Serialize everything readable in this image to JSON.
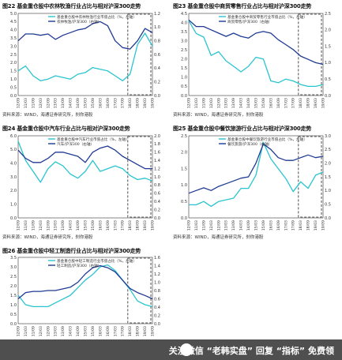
{
  "colors": {
    "teal": "#29c4cf",
    "navy": "#1f3a93",
    "frame": "#333333"
  },
  "x_ticks": [
    "12/09",
    "11/03",
    "11/09",
    "12/03",
    "12/09",
    "13/03",
    "13/09",
    "14/03",
    "14/09",
    "15/03",
    "15/09",
    "16/03",
    "16/09",
    "17/03",
    "17/09",
    "18/03",
    "18/09",
    "19/03",
    "19/09"
  ],
  "source": "资料来源：WIND，海通证券研究所，刹你港股",
  "watermark": {
    "text": "关注微信 “老韩实盘” 回复 “指标” 免费领"
  },
  "chart_data": [
    {
      "type": "line",
      "title": "图22 基金重仓股中农林牧渔行业占比与相对沪深300走势",
      "ylim_left": [
        0.0,
        5.0
      ],
      "yticks_left": [
        "0.0",
        "0.5",
        "1.0",
        "1.5",
        "2.0",
        "2.5",
        "3.0",
        "3.5",
        "4.0",
        "4.5",
        "5.0"
      ],
      "ylim_right": [
        0.0,
        1.2
      ],
      "yticks_right": [
        "0.0",
        "0.2",
        "0.4",
        "0.6",
        "0.8",
        "1.0",
        "1.2"
      ],
      "legend": [
        "基金重仓股中农林牧渔行业市值占比（%，左轴）",
        "农林牧渔/沪深300（右轴）"
      ],
      "series": [
        {
          "name": "基金重仓股中农林牧渔行业市值占比（%，左轴）",
          "axis": "left",
          "values": [
            1.5,
            1.8,
            1.2,
            0.9,
            1.0,
            1.2,
            1.1,
            1.0,
            1.3,
            1.4,
            1.7,
            1.6,
            1.5,
            1.2,
            0.9,
            1.3,
            3.1,
            3.8,
            3.0
          ]
        },
        {
          "name": "农林牧渔/沪深300（右轴）",
          "axis": "right",
          "values": [
            0.8,
            0.9,
            0.9,
            0.88,
            0.9,
            0.82,
            0.88,
            0.92,
            0.96,
            0.98,
            1.05,
            1.08,
            1.02,
            0.8,
            0.7,
            0.68,
            0.8,
            0.98,
            0.92
          ]
        }
      ]
    },
    {
      "type": "line",
      "title": "图23 基金重仓股中商贸零售行业占比与相对沪深300走势",
      "ylim_left": [
        0.0,
        4.5
      ],
      "yticks_left": [
        "0.0",
        "0.5",
        "1.0",
        "1.5",
        "2.0",
        "2.5",
        "3.0",
        "3.5",
        "4.0",
        "4.5"
      ],
      "ylim_right": [
        0.0,
        2.5
      ],
      "yticks_right": [
        "0.0",
        "0.5",
        "1.0",
        "1.5",
        "2.0",
        "2.5"
      ],
      "legend": [
        "基金重仓股中商贸零售行业市值占比（%，左轴）",
        "商贸零售/沪深300（右轴）"
      ],
      "series": [
        {
          "name": "基金重仓股中商贸零售行业市值占比（%，左轴）",
          "axis": "left",
          "values": [
            4.1,
            3.4,
            3.2,
            2.2,
            2.4,
            1.9,
            1.6,
            1.3,
            1.6,
            2.1,
            2.0,
            0.8,
            0.7,
            0.9,
            0.8,
            0.6,
            0.5,
            0.5,
            0.6
          ]
        },
        {
          "name": "商贸零售/沪深300（右轴）",
          "axis": "right",
          "values": [
            2.3,
            2.1,
            2.1,
            2.0,
            1.9,
            1.8,
            1.9,
            1.8,
            1.75,
            1.9,
            1.95,
            1.9,
            1.7,
            1.55,
            1.4,
            1.2,
            1.1,
            1.0,
            0.95
          ]
        }
      ]
    },
    {
      "type": "line",
      "title": "图24 基金重仓股中汽车行业占比与相对沪深300走势",
      "ylim_left": [
        0.0,
        6.0
      ],
      "yticks_left": [
        "0.0",
        "1.0",
        "2.0",
        "3.0",
        "4.0",
        "5.0",
        "6.0"
      ],
      "ylim_right": [
        0.0,
        2.0
      ],
      "yticks_right": [
        "0.0",
        "0.2",
        "0.4",
        "0.6",
        "0.8",
        "1.0",
        "1.2",
        "1.4",
        "1.6",
        "1.8",
        "2.0"
      ],
      "legend": [
        "基金重仓股中汽车行业市值占比（%，左轴）",
        "汽车/沪深300（右轴）"
      ],
      "series": [
        {
          "name": "基金重仓股中汽车行业市值占比（%，左轴）",
          "axis": "left",
          "values": [
            5.6,
            4.2,
            3.4,
            2.6,
            3.6,
            4.1,
            3.8,
            3.2,
            2.9,
            3.4,
            4.2,
            3.4,
            3.6,
            3.8,
            3.6,
            3.1,
            2.8,
            2.9,
            2.7
          ]
        },
        {
          "name": "汽车/沪深300（右轴）",
          "axis": "right",
          "values": [
            1.65,
            1.45,
            1.35,
            1.35,
            1.45,
            1.6,
            1.6,
            1.55,
            1.5,
            1.35,
            1.6,
            1.7,
            1.75,
            1.65,
            1.5,
            1.4,
            1.3,
            1.2,
            1.2
          ]
        }
      ]
    },
    {
      "type": "line",
      "title": "图25 基金重仓股中餐饮旅游行业占比与相对沪深300走势",
      "ylim_left": [
        0.0,
        2.5
      ],
      "yticks_left": [
        "0.0",
        "0.5",
        "1.0",
        "1.5",
        "2.0",
        "2.5"
      ],
      "ylim_right": [
        0.0,
        3.0
      ],
      "yticks_right": [
        "0.0",
        "0.5",
        "1.0",
        "1.5",
        "2.0",
        "2.5",
        "3.0"
      ],
      "legend": [
        "基金重仓股中餐饮旅游行业市值占比（%，左轴）",
        "餐饮旅游/沪深300（右轴）"
      ],
      "series": [
        {
          "name": "基金重仓股中餐饮旅游行业市值占比（%，左轴）",
          "axis": "left",
          "values": [
            0.4,
            0.4,
            0.5,
            0.35,
            0.5,
            0.55,
            0.6,
            0.9,
            0.9,
            1.3,
            2.3,
            1.8,
            1.5,
            1.2,
            0.8,
            1.1,
            0.9,
            1.3,
            1.4
          ]
        },
        {
          "name": "餐饮旅游/沪深300（右轴）",
          "axis": "right",
          "values": [
            0.9,
            1.0,
            1.1,
            1.0,
            1.15,
            1.25,
            1.35,
            1.45,
            1.5,
            2.0,
            2.7,
            2.5,
            2.2,
            2.1,
            2.1,
            2.2,
            2.3,
            2.2,
            2.25
          ]
        }
      ]
    },
    {
      "type": "line",
      "title": "图26 基金重仓股中轻工制造行业占比与相对沪深300走势",
      "ylim_left": [
        0.0,
        3.5
      ],
      "yticks_left": [
        "0.0",
        "0.5",
        "1.0",
        "1.5",
        "2.0",
        "2.5",
        "3.0",
        "3.5"
      ],
      "ylim_right": [
        0.0,
        1.6
      ],
      "yticks_right": [
        "0.0",
        "0.2",
        "0.4",
        "0.6",
        "0.8",
        "1.0",
        "1.2",
        "1.4",
        "1.6"
      ],
      "legend": [
        "基金重仓股中轻工制造行业市值占比（%，左轴）",
        "轻工制造/沪深300（右轴）"
      ],
      "series": [
        {
          "name": "基金重仓股中轻工制造行业市值占比（%，左轴）",
          "axis": "left",
          "values": [
            1.5,
            1.0,
            0.9,
            0.9,
            0.9,
            1.1,
            1.3,
            1.5,
            1.9,
            2.3,
            2.6,
            3.0,
            3.1,
            2.8,
            2.3,
            1.8,
            1.2,
            1.0,
            0.9
          ]
        },
        {
          "name": "轻工制造/沪深300（右轴）",
          "axis": "right",
          "values": [
            0.6,
            0.75,
            0.78,
            0.78,
            0.8,
            0.8,
            0.84,
            0.88,
            1.0,
            1.2,
            1.35,
            1.4,
            1.35,
            1.25,
            1.05,
            0.85,
            0.75,
            0.68,
            0.6
          ]
        }
      ]
    }
  ]
}
